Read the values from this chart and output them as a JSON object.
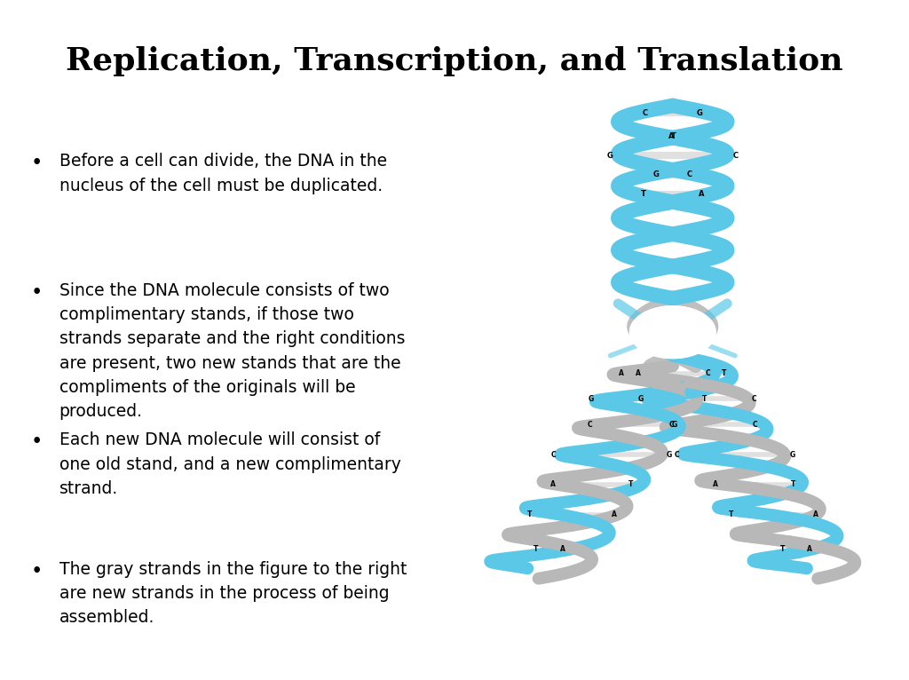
{
  "title": "Replication, Transcription, and Translation",
  "title_fontsize": 26,
  "background_color": "#ffffff",
  "text_color": "#000000",
  "bullet_points": [
    "Before a cell can divide, the DNA in the\nnucleus of the cell must be duplicated.",
    "Since the DNA molecule consists of two\ncomplimentary stands, if those two\nstrands separate and the right conditions\nare present, two new stands that are the\ncompliments of the originals will be\nproduced.",
    "Each new DNA molecule will consist of\none old stand, and a new complimentary\nstrand.",
    "The gray strands in the figure to the right\nare new strands in the process of being\nassembled."
  ],
  "bullet_fontsize": 13.5,
  "blue_color": "#5BC8E8",
  "gray_color": "#B8B8B8",
  "white_color": "#FFFFFF"
}
